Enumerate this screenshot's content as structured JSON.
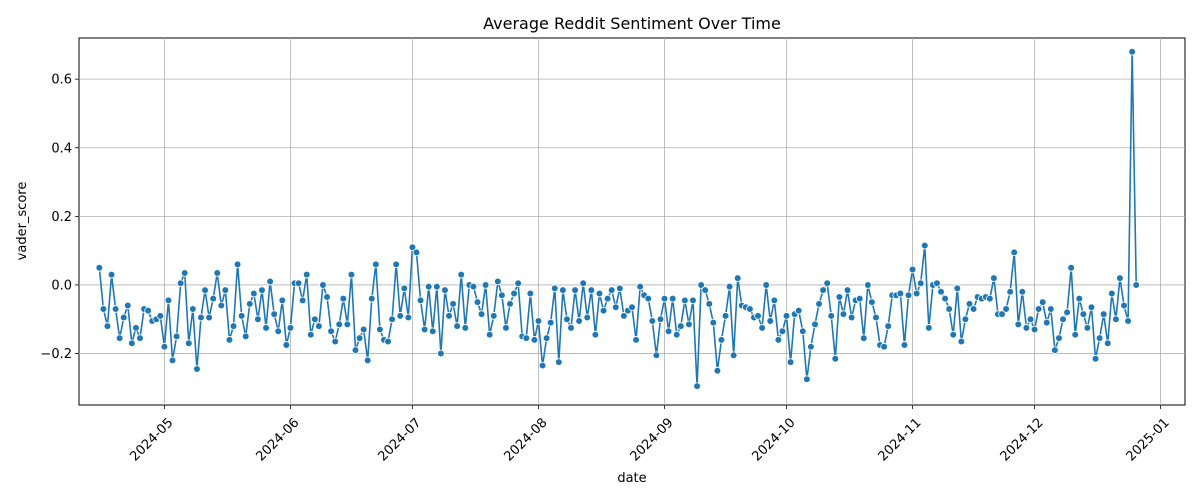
{
  "chart_data": {
    "type": "line",
    "title": "Average Reddit Sentiment Over Time",
    "xlabel": "date",
    "ylabel": "vader_score",
    "grid": true,
    "marker": "circle",
    "line_color": "#1f77b4",
    "x_tick_labels": [
      "2024-05",
      "2024-06",
      "2024-07",
      "2024-08",
      "2024-09",
      "2024-10",
      "2024-11",
      "2024-12",
      "2025-01"
    ],
    "x_ticks": [
      "2024-05-01",
      "2024-06-01",
      "2024-07-01",
      "2024-08-01",
      "2024-09-01",
      "2024-10-01",
      "2024-11-01",
      "2024-12-01",
      "2025-01-01"
    ],
    "y_tick_labels": [
      "−0.2",
      "0.0",
      "0.2",
      "0.4",
      "0.6"
    ],
    "y_ticks": [
      -0.2,
      0.0,
      0.2,
      0.4,
      0.6
    ],
    "xlim": [
      "2024-04-10",
      "2025-01-07"
    ],
    "ylim": [
      -0.35,
      0.72
    ],
    "series": [
      {
        "x_start": "2024-04-15",
        "x_step_days": 1,
        "values": [
          0.05,
          -0.07,
          -0.12,
          0.03,
          -0.07,
          -0.155,
          -0.095,
          -0.06,
          -0.17,
          -0.125,
          -0.155,
          -0.07,
          -0.075,
          -0.105,
          -0.1,
          -0.09,
          -0.18,
          -0.045,
          -0.22,
          -0.15,
          0.005,
          0.035,
          -0.17,
          -0.07,
          -0.245,
          -0.095,
          -0.015,
          -0.095,
          -0.04,
          0.035,
          -0.06,
          -0.015,
          -0.16,
          -0.12,
          0.06,
          -0.09,
          -0.15,
          -0.055,
          -0.025,
          -0.1,
          -0.015,
          -0.125,
          0.01,
          -0.085,
          -0.135,
          -0.045,
          -0.175,
          -0.125,
          0.005,
          0.005,
          -0.045,
          0.03,
          -0.145,
          -0.1,
          -0.12,
          0.0,
          -0.035,
          -0.135,
          -0.165,
          -0.115,
          -0.04,
          -0.115,
          0.03,
          -0.19,
          -0.155,
          -0.13,
          -0.22,
          -0.04,
          0.06,
          -0.13,
          -0.16,
          -0.165,
          -0.1,
          0.06,
          -0.09,
          -0.01,
          -0.095,
          0.11,
          0.095,
          -0.045,
          -0.13,
          -0.005,
          -0.135,
          -0.005,
          -0.2,
          -0.015,
          -0.09,
          -0.055,
          -0.12,
          0.03,
          -0.125,
          0.0,
          -0.005,
          -0.05,
          -0.085,
          0.0,
          -0.145,
          -0.09,
          0.01,
          -0.03,
          -0.125,
          -0.055,
          -0.025,
          0.005,
          -0.15,
          -0.155,
          -0.025,
          -0.16,
          -0.105,
          -0.235,
          -0.155,
          -0.11,
          -0.01,
          -0.225,
          -0.015,
          -0.1,
          -0.125,
          -0.015,
          -0.105,
          0.005,
          -0.095,
          -0.015,
          -0.145,
          -0.025,
          -0.075,
          -0.04,
          -0.015,
          -0.065,
          -0.01,
          -0.09,
          -0.075,
          -0.065,
          -0.16,
          -0.005,
          -0.03,
          -0.04,
          -0.105,
          -0.205,
          -0.1,
          -0.04,
          -0.135,
          -0.04,
          -0.145,
          -0.12,
          -0.045,
          -0.115,
          -0.045,
          -0.295,
          0.0,
          -0.015,
          -0.055,
          -0.11,
          -0.25,
          -0.16,
          -0.09,
          -0.005,
          -0.205,
          0.02,
          -0.06,
          -0.065,
          -0.07,
          -0.095,
          -0.09,
          -0.125,
          0.0,
          -0.105,
          -0.045,
          -0.16,
          -0.135,
          -0.09,
          -0.225,
          -0.085,
          -0.075,
          -0.135,
          -0.275,
          -0.18,
          -0.115,
          -0.055,
          -0.015,
          0.005,
          -0.09,
          -0.215,
          -0.035,
          -0.085,
          -0.015,
          -0.095,
          -0.045,
          -0.04,
          -0.155,
          0.0,
          -0.05,
          -0.095,
          -0.175,
          -0.18,
          -0.12,
          -0.03,
          -0.03,
          -0.025,
          -0.175,
          -0.03,
          0.045,
          -0.025,
          0.005,
          0.115,
          -0.125,
          0.0,
          0.005,
          -0.02,
          -0.04,
          -0.07,
          -0.145,
          -0.01,
          -0.165,
          -0.1,
          -0.055,
          -0.07,
          -0.035,
          -0.04,
          -0.035,
          -0.04,
          0.02,
          -0.085,
          -0.085,
          -0.07,
          -0.02,
          0.095,
          -0.115,
          -0.02,
          -0.125,
          -0.1,
          -0.13,
          -0.07,
          -0.05,
          -0.11,
          -0.07,
          -0.19,
          -0.155,
          -0.1,
          -0.08,
          0.05,
          -0.145,
          -0.04,
          -0.085,
          -0.125,
          -0.065,
          -0.215,
          -0.155,
          -0.085,
          -0.17,
          -0.025,
          -0.1,
          0.02,
          -0.06,
          -0.105,
          0.68,
          0.0
        ]
      }
    ]
  }
}
